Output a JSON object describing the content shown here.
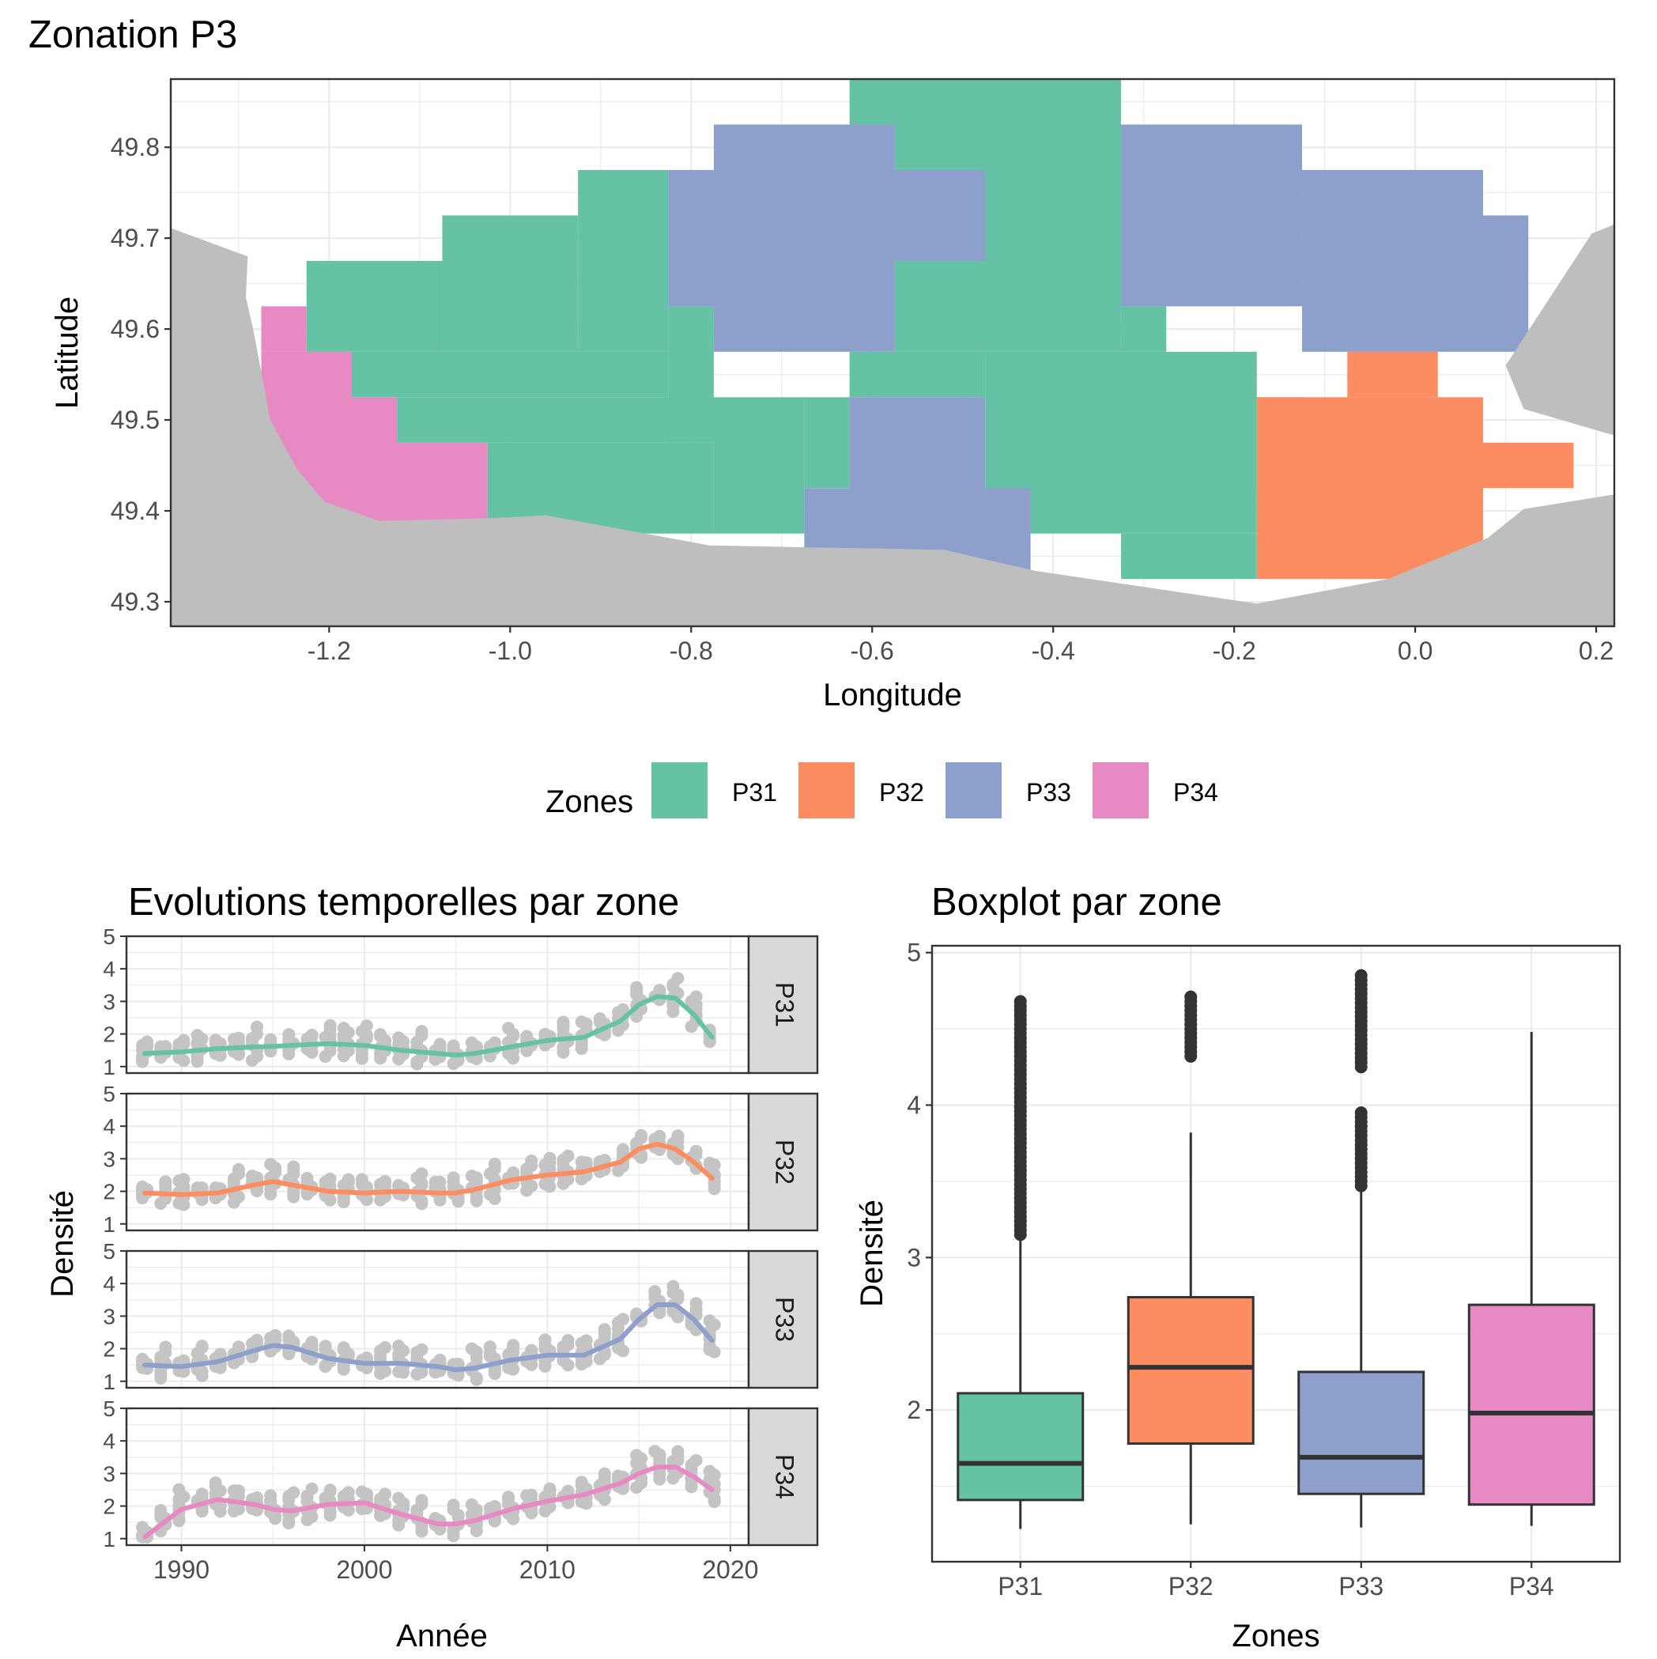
{
  "colors": {
    "P31": "#66c2a5",
    "P32": "#fc8d62",
    "P33": "#8da0cb",
    "P34": "#e78ac3",
    "land": "#bebebe",
    "points": "#c4c4c4",
    "grid": "#ebebeb",
    "strip": "#d9d9d9",
    "box_line": "#333333"
  },
  "map": {
    "title": "Zonation P3",
    "xlabel": "Longitude",
    "ylabel": "Latitude",
    "xticks": [
      "-1.2",
      "-1.0",
      "-0.8",
      "-0.6",
      "-0.4",
      "-0.2",
      "0.0",
      "0.2"
    ],
    "yticks": [
      "49.3",
      "49.4",
      "49.5",
      "49.6",
      "49.7",
      "49.8"
    ],
    "xlim": [
      -1.375,
      0.22
    ],
    "ylim": [
      49.273,
      49.875
    ]
  },
  "legend": {
    "title": "Zones",
    "items": [
      {
        "key": "P31",
        "label": "P31"
      },
      {
        "key": "P32",
        "label": "P32"
      },
      {
        "key": "P33",
        "label": "P33"
      },
      {
        "key": "P34",
        "label": "P34"
      }
    ]
  },
  "series_panel": {
    "title": "Evolutions temporelles par zone",
    "xlabel": "Année",
    "ylabel": "Densité",
    "xticks": [
      "1990",
      "2000",
      "2010",
      "2020"
    ],
    "yticks": [
      "1",
      "2",
      "3",
      "4",
      "5"
    ],
    "facets": [
      "P31",
      "P32",
      "P33",
      "P34"
    ]
  },
  "box_panel": {
    "title": "Boxplot par zone",
    "xlabel": "Zones",
    "ylabel": "Densité",
    "yticks": [
      "2",
      "3",
      "4",
      "5"
    ],
    "categories": [
      "P31",
      "P32",
      "P33",
      "P34"
    ]
  },
  "chart_data": [
    {
      "type": "heatmap",
      "title": "Zonation P3",
      "description_cells": "grid cells 0.05° x 0.05° colored by zone",
      "xlim": [
        -1.375,
        0.22
      ],
      "ylim": [
        49.273,
        49.875
      ],
      "cells": [
        {
          "zone": "P34",
          "lon": [
            -1.275,
            -1.225
          ],
          "lat": [
            49.575,
            49.625
          ]
        },
        {
          "zone": "P34",
          "lon": [
            -1.275,
            -1.175
          ],
          "lat": [
            49.475,
            49.575
          ]
        },
        {
          "zone": "P34",
          "lon": [
            -1.275,
            -1.125
          ],
          "lat": [
            49.425,
            49.525
          ]
        },
        {
          "zone": "P34",
          "lon": [
            -1.225,
            -1.025
          ],
          "lat": [
            49.375,
            49.475
          ]
        },
        {
          "zone": "P31",
          "lon": [
            -1.225,
            -1.075
          ],
          "lat": [
            49.575,
            49.675
          ]
        },
        {
          "zone": "P31",
          "lon": [
            -1.075,
            -0.925
          ],
          "lat": [
            49.575,
            49.725
          ]
        },
        {
          "zone": "P31",
          "lon": [
            -0.925,
            -0.825
          ],
          "lat": [
            49.575,
            49.775
          ]
        },
        {
          "zone": "P31",
          "lon": [
            -1.175,
            -0.825
          ],
          "lat": [
            49.525,
            49.575
          ]
        },
        {
          "zone": "P31",
          "lon": [
            -1.125,
            -0.775
          ],
          "lat": [
            49.475,
            49.525
          ]
        },
        {
          "zone": "P31",
          "lon": [
            -1.025,
            -0.775
          ],
          "lat": [
            49.375,
            49.475
          ]
        },
        {
          "zone": "P31",
          "lon": [
            -0.825,
            -0.775
          ],
          "lat": [
            49.475,
            49.625
          ]
        },
        {
          "zone": "P31",
          "lon": [
            -0.775,
            -0.675
          ],
          "lat": [
            49.375,
            49.525
          ]
        },
        {
          "zone": "P31",
          "lon": [
            -0.675,
            -0.625
          ],
          "lat": [
            49.425,
            49.525
          ]
        },
        {
          "zone": "P31",
          "lon": [
            -0.625,
            -0.475
          ],
          "lat": [
            49.525,
            49.575
          ]
        },
        {
          "zone": "P31",
          "lon": [
            -0.625,
            -0.325
          ],
          "lat": [
            49.875,
            49.825
          ]
        },
        {
          "zone": "P31",
          "lon": [
            -0.575,
            -0.325
          ],
          "lat": [
            49.575,
            49.825
          ]
        },
        {
          "zone": "P31",
          "lon": [
            -0.475,
            -0.175
          ],
          "lat": [
            49.375,
            49.575
          ]
        },
        {
          "zone": "P31",
          "lon": [
            -0.325,
            -0.275
          ],
          "lat": [
            49.575,
            49.625
          ]
        },
        {
          "zone": "P31",
          "lon": [
            -0.325,
            -0.175
          ],
          "lat": [
            49.325,
            49.375
          ]
        },
        {
          "zone": "P31",
          "lon": [
            -0.175,
            -0.125
          ],
          "lat": [
            49.425,
            49.525
          ]
        },
        {
          "zone": "P33",
          "lon": [
            -0.825,
            -0.625
          ],
          "lat": [
            49.625,
            49.775
          ]
        },
        {
          "zone": "P33",
          "lon": [
            -0.775,
            -0.575
          ],
          "lat": [
            49.575,
            49.825
          ]
        },
        {
          "zone": "P33",
          "lon": [
            -0.625,
            -0.475
          ],
          "lat": [
            49.675,
            49.775
          ]
        },
        {
          "zone": "P33",
          "lon": [
            -0.625,
            -0.475
          ],
          "lat": [
            49.375,
            49.525
          ]
        },
        {
          "zone": "P33",
          "lon": [
            -0.675,
            -0.425
          ],
          "lat": [
            49.325,
            49.425
          ]
        },
        {
          "zone": "P33",
          "lon": [
            -0.325,
            -0.125
          ],
          "lat": [
            49.625,
            49.825
          ]
        },
        {
          "zone": "P33",
          "lon": [
            -0.125,
            0.075
          ],
          "lat": [
            49.575,
            49.775
          ]
        },
        {
          "zone": "P33",
          "lon": [
            0.075,
            0.125
          ],
          "lat": [
            49.575,
            49.725
          ]
        },
        {
          "zone": "P32",
          "lon": [
            -0.125,
            0.175
          ],
          "lat": [
            49.425,
            49.475
          ]
        },
        {
          "zone": "P32",
          "lon": [
            -0.175,
            0.075
          ],
          "lat": [
            49.325,
            49.525
          ]
        },
        {
          "zone": "P32",
          "lon": [
            -0.075,
            0.025
          ],
          "lat": [
            49.525,
            49.575
          ]
        }
      ]
    },
    {
      "type": "line",
      "title": "Evolutions temporelles par zone",
      "xlabel": "Année",
      "ylabel": "Densité",
      "xlim": [
        1987,
        2021
      ],
      "ylim": [
        0.8,
        5.0
      ],
      "x": [
        1988,
        1990,
        1992,
        1994,
        1995,
        1996,
        1998,
        2000,
        2002,
        2004,
        2005,
        2006,
        2008,
        2010,
        2012,
        2014,
        2015,
        2016,
        2017,
        2018,
        2019
      ],
      "series": [
        {
          "name": "P31",
          "values": [
            1.4,
            1.45,
            1.55,
            1.6,
            1.62,
            1.65,
            1.7,
            1.65,
            1.5,
            1.4,
            1.35,
            1.4,
            1.6,
            1.8,
            1.9,
            2.4,
            2.9,
            3.15,
            3.1,
            2.6,
            1.9
          ]
        },
        {
          "name": "P32",
          "values": [
            1.95,
            1.9,
            1.95,
            2.2,
            2.3,
            2.2,
            2.0,
            1.95,
            2.0,
            1.95,
            1.95,
            2.05,
            2.35,
            2.5,
            2.6,
            2.9,
            3.3,
            3.45,
            3.3,
            2.9,
            2.4
          ]
        },
        {
          "name": "P33",
          "values": [
            1.5,
            1.45,
            1.6,
            1.95,
            2.1,
            2.05,
            1.7,
            1.55,
            1.55,
            1.45,
            1.35,
            1.4,
            1.65,
            1.8,
            1.8,
            2.3,
            2.9,
            3.35,
            3.35,
            2.9,
            2.25
          ]
        },
        {
          "name": "P34",
          "values": [
            1.05,
            1.9,
            2.2,
            2.05,
            1.9,
            1.85,
            2.05,
            2.1,
            1.75,
            1.45,
            1.45,
            1.55,
            1.9,
            2.15,
            2.35,
            2.7,
            3.0,
            3.2,
            3.2,
            2.9,
            2.5
          ]
        }
      ],
      "points_years": [
        1988,
        1989,
        1990,
        1991,
        1992,
        1993,
        1994,
        1995,
        1996,
        1997,
        1998,
        1999,
        2000,
        2001,
        2002,
        2003,
        2004,
        2005,
        2006,
        2007,
        2008,
        2009,
        2010,
        2011,
        2012,
        2013,
        2014,
        2015,
        2016,
        2017,
        2018,
        2019
      ]
    },
    {
      "type": "bar",
      "subtype": "boxplot",
      "title": "Boxplot par zone",
      "xlabel": "Zones",
      "ylabel": "Densité",
      "ylim": [
        1.0,
        5.0
      ],
      "categories": [
        "P31",
        "P32",
        "P33",
        "P34"
      ],
      "boxes": [
        {
          "name": "P31",
          "whisker_low": 1.22,
          "q1": 1.41,
          "median": 1.65,
          "q3": 2.11,
          "whisker_high": 3.15,
          "outliers_range": [
            3.15,
            4.7
          ]
        },
        {
          "name": "P32",
          "whisker_low": 1.25,
          "q1": 1.78,
          "median": 2.28,
          "q3": 2.74,
          "whisker_high": 3.82,
          "outliers_range": [
            4.32,
            4.71
          ]
        },
        {
          "name": "P33",
          "whisker_low": 1.23,
          "q1": 1.45,
          "median": 1.69,
          "q3": 2.25,
          "whisker_high": 3.47,
          "outliers_range": [
            3.47,
            4.86
          ]
        },
        {
          "name": "P34",
          "whisker_low": 1.24,
          "q1": 1.38,
          "median": 1.98,
          "q3": 2.69,
          "whisker_high": 4.48,
          "outliers_range": []
        }
      ]
    }
  ]
}
